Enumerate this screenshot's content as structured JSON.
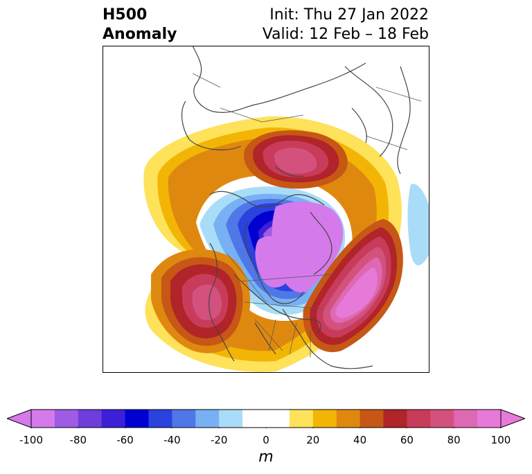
{
  "title": {
    "line1": "H500",
    "line2": "Anomaly",
    "init": "Init: Thu 27 Jan 2022",
    "valid": "Valid: 12 Feb – 18 Feb"
  },
  "colorbar": {
    "units": "m",
    "ticks": [
      "-100",
      "-80",
      "-60",
      "-40",
      "-20",
      "0",
      "20",
      "40",
      "60",
      "80",
      "100"
    ],
    "colors": [
      "#d57aea",
      "#9d5ce3",
      "#6e3ddb",
      "#3d1fd8",
      "#0000d0",
      "#2a42de",
      "#5077e8",
      "#78b1f3",
      "#a9dcf8",
      "#ffffff",
      "#ffffff",
      "#fde25a",
      "#f2b505",
      "#df8810",
      "#c65715",
      "#b0242a",
      "#c83b5a",
      "#d2527d",
      "#de68b2",
      "#e77ad9"
    ],
    "extend_min": "#d57aea",
    "extend_max": "#e77ad9"
  },
  "map": {
    "projection": "polar-stereographic",
    "colors": {
      "ocean": "#fffffd",
      "coast": "#444444",
      "border": "#333333"
    }
  }
}
